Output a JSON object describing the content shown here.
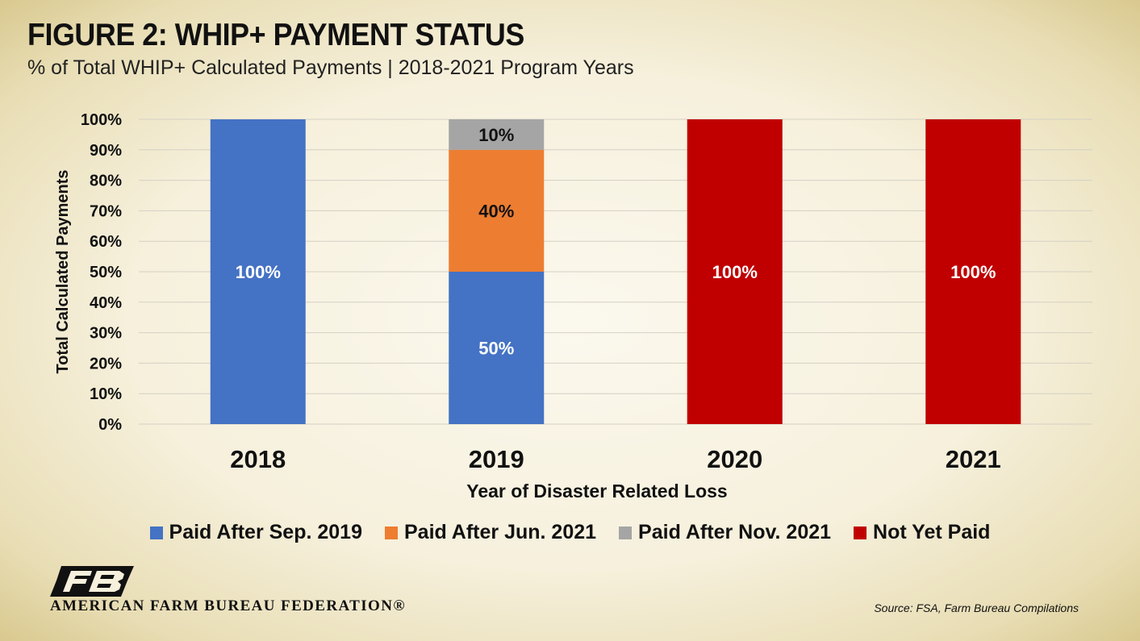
{
  "header": {
    "title": "FIGURE 2: WHIP+ PAYMENT STATUS",
    "subtitle": "% of Total WHIP+ Calculated Payments | 2018-2021 Program Years"
  },
  "chart_data": {
    "type": "bar",
    "stacked": true,
    "categories": [
      "2018",
      "2019",
      "2020",
      "2021"
    ],
    "series": [
      {
        "name": "Paid After Sep. 2019",
        "color": "#4472c4",
        "values": [
          100,
          50,
          0,
          0
        ]
      },
      {
        "name": "Paid After Jun. 2021",
        "color": "#ed7d31",
        "values": [
          0,
          40,
          0,
          0
        ]
      },
      {
        "name": "Paid After Nov. 2021",
        "color": "#a5a5a5",
        "values": [
          0,
          10,
          0,
          0
        ]
      },
      {
        "name": "Not Yet Paid",
        "color": "#c00000",
        "values": [
          0,
          0,
          100,
          100
        ]
      }
    ],
    "xlabel": "Year of Disaster Related Loss",
    "ylabel": "Total Calculated Payments",
    "ylim": [
      0,
      100
    ],
    "yticks": [
      "0%",
      "10%",
      "20%",
      "30%",
      "40%",
      "50%",
      "60%",
      "70%",
      "80%",
      "90%",
      "100%"
    ],
    "grid": true,
    "legend_position": "bottom"
  },
  "footer": {
    "org_name": "AMERICAN FARM BUREAU FEDERATION®",
    "logo_text": "FB",
    "source": "Source: FSA, Farm Bureau Compilations"
  }
}
